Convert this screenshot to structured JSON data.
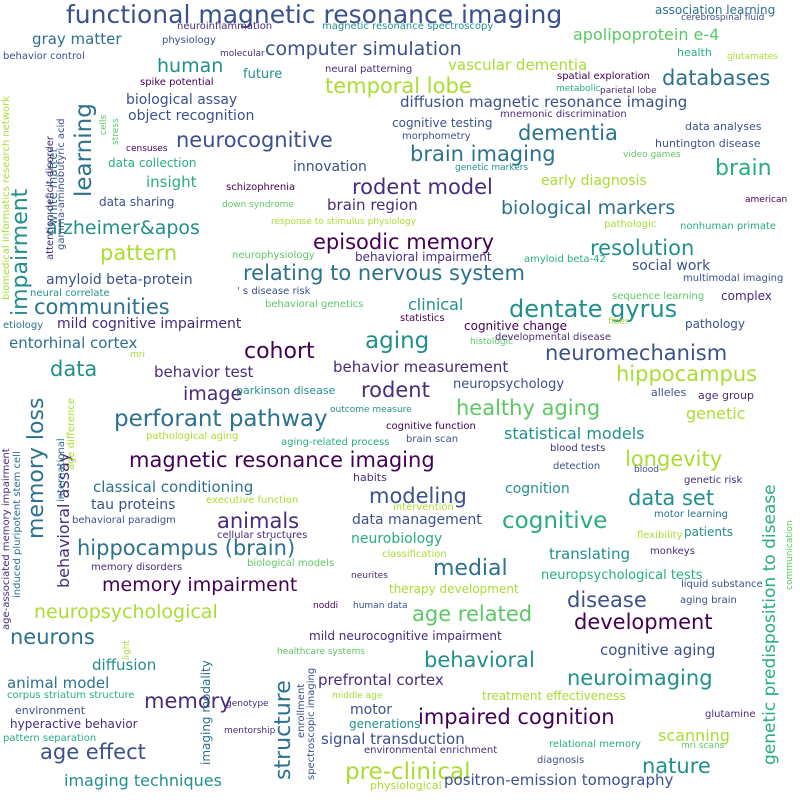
{
  "palette": [
    "#440154",
    "#472c7a",
    "#3b518b",
    "#2c718e",
    "#21908d",
    "#27ad81",
    "#5cc863",
    "#aadc32",
    "#fde725"
  ],
  "words": [
    {
      "t": "functional magnetic resonance imaging",
      "c": "#3b518b"
    },
    {
      "t": "association learning",
      "c": "#2c718e"
    },
    {
      "t": "neuroinflammation",
      "c": "#472c7a"
    },
    {
      "t": "magnetic resonance spectroscopy",
      "c": "#21908d"
    },
    {
      "t": "cerebrospinal fluid",
      "c": "#3b518b"
    },
    {
      "t": "gray matter",
      "c": "#2c718e"
    },
    {
      "t": "physiology",
      "c": "#3b518b"
    },
    {
      "t": "computer simulation",
      "c": "#3b518b"
    },
    {
      "t": "apolipoprotein e-4",
      "c": "#5cc863"
    },
    {
      "t": "human",
      "c": "#21908d"
    },
    {
      "t": "molecular",
      "c": "#472c7a"
    },
    {
      "t": "health",
      "c": "#27ad81"
    },
    {
      "t": "glutamates",
      "c": "#aadc32"
    },
    {
      "t": "behavior control",
      "c": "#3b518b"
    },
    {
      "t": "future",
      "c": "#21908d"
    },
    {
      "t": "neural patterning",
      "c": "#472c7a"
    },
    {
      "t": "vascular dementia",
      "c": "#aadc32"
    },
    {
      "t": "spatial exploration",
      "c": "#440154"
    },
    {
      "t": "databases",
      "c": "#2c718e"
    },
    {
      "t": "spike potential",
      "c": "#440154"
    },
    {
      "t": "temporal lobe",
      "c": "#aadc32"
    },
    {
      "t": "metabolic",
      "c": "#27ad81"
    },
    {
      "t": "parietal lobe",
      "c": "#472c7a"
    },
    {
      "t": "biological assay",
      "c": "#3b518b"
    },
    {
      "t": "diffusion magnetic resonance imaging",
      "c": "#3b518b"
    },
    {
      "t": "object recognition",
      "c": "#3b518b"
    },
    {
      "t": "mnemonic discrimination",
      "c": "#472c7a"
    },
    {
      "t": "cognitive testing",
      "c": "#3b518b"
    },
    {
      "t": "data analyses",
      "c": "#3b518b"
    },
    {
      "t": "neurocognitive",
      "c": "#3b518b"
    },
    {
      "t": "dementia",
      "c": "#2c718e"
    },
    {
      "t": "morphometry",
      "c": "#3b518b"
    },
    {
      "t": "huntington disease",
      "c": "#3b518b"
    },
    {
      "t": "brain imaging",
      "c": "#2c718e"
    },
    {
      "t": "brain",
      "c": "#27ad81"
    },
    {
      "t": "censuses",
      "c": "#440154"
    },
    {
      "t": "data collection",
      "c": "#27ad81"
    },
    {
      "t": "innovation",
      "c": "#3b518b"
    },
    {
      "t": "genetic markers",
      "c": "#21908d"
    },
    {
      "t": "video games",
      "c": "#5cc863"
    },
    {
      "t": "rodent model",
      "c": "#472c7a"
    },
    {
      "t": "early diagnosis",
      "c": "#aadc32"
    },
    {
      "t": "insight",
      "c": "#27ad81"
    },
    {
      "t": "schizophrenia",
      "c": "#440154"
    },
    {
      "t": "biological markers",
      "c": "#2c718e"
    },
    {
      "t": "data sharing",
      "c": "#3b518b"
    },
    {
      "t": "brain region",
      "c": "#472c7a"
    },
    {
      "t": "down syndrome",
      "c": "#5cc863"
    },
    {
      "t": "american",
      "c": "#440154"
    },
    {
      "t": "alzheimer&apos",
      "c": "#21908d"
    },
    {
      "t": "pathologic",
      "c": "#aadc32"
    },
    {
      "t": "nonhuman primate",
      "c": "#27ad81"
    },
    {
      "t": "response to stimulus physiology",
      "c": "#aadc32"
    },
    {
      "t": "episodic memory",
      "c": "#440154"
    },
    {
      "t": "resolution",
      "c": "#21908d"
    },
    {
      "t": "pattern",
      "c": "#aadc32"
    },
    {
      "t": "relating to nervous system",
      "c": "#2c718e"
    },
    {
      "t": "neurophysiology",
      "c": "#5cc863"
    },
    {
      "t": "behavioral impairment",
      "c": "#472c7a"
    },
    {
      "t": "amyloid beta-42",
      "c": "#27ad81"
    },
    {
      "t": "social work",
      "c": "#3b518b"
    },
    {
      "t": "amyloid beta-protein",
      "c": "#3b518b"
    },
    {
      "t": "multimodal imaging",
      "c": "#3b518b"
    },
    {
      "t": "communities",
      "c": "#2c718e"
    },
    {
      "t": "neural correlate",
      "c": "#21908d"
    },
    {
      "t": "' s disease risk",
      "c": "#3b518b"
    },
    {
      "t": "behavioral genetics",
      "c": "#5cc863"
    },
    {
      "t": "sequence learning",
      "c": "#5cc863"
    },
    {
      "t": "complex",
      "c": "#472c7a"
    },
    {
      "t": "dentate gyrus",
      "c": "#21908d"
    },
    {
      "t": "clinical",
      "c": "#21908d"
    },
    {
      "t": "mild cognitive impairment",
      "c": "#472c7a"
    },
    {
      "t": "statistics",
      "c": "#440154"
    },
    {
      "t": "cognitive change",
      "c": "#440154"
    },
    {
      "t": "fiber",
      "c": "#aadc32"
    },
    {
      "t": "pathology",
      "c": "#3b518b"
    },
    {
      "t": "etiology",
      "c": "#2c718e"
    },
    {
      "t": "aging",
      "c": "#21908d"
    },
    {
      "t": "histologic",
      "c": "#5cc863"
    },
    {
      "t": "developmental disease",
      "c": "#472c7a"
    },
    {
      "t": "entorhinal cortex",
      "c": "#2c718e"
    },
    {
      "t": "cohort",
      "c": "#440154"
    },
    {
      "t": "neuromechanism",
      "c": "#3b518b"
    },
    {
      "t": "mri",
      "c": "#aadc32"
    },
    {
      "t": "data",
      "c": "#21908d"
    },
    {
      "t": "behavior measurement",
      "c": "#472c7a"
    },
    {
      "t": "hippocampus",
      "c": "#aadc32"
    },
    {
      "t": "behavior test",
      "c": "#472c7a"
    },
    {
      "t": "neuropsychology",
      "c": "#3b518b"
    },
    {
      "t": "image",
      "c": "#472c7a"
    },
    {
      "t": "parkinson disease",
      "c": "#21908d"
    },
    {
      "t": "rodent",
      "c": "#472c7a"
    },
    {
      "t": "alleles",
      "c": "#3b518b"
    },
    {
      "t": "age group",
      "c": "#472c7a"
    },
    {
      "t": "perforant pathway",
      "c": "#2c718e"
    },
    {
      "t": "outcome measure",
      "c": "#21908d"
    },
    {
      "t": "healthy aging",
      "c": "#5cc863"
    },
    {
      "t": "genetic",
      "c": "#aadc32"
    },
    {
      "t": "cognitive function",
      "c": "#440154"
    },
    {
      "t": "statistical models",
      "c": "#21908d"
    },
    {
      "t": "pathological aging",
      "c": "#aadc32"
    },
    {
      "t": "aging-related process",
      "c": "#27ad81"
    },
    {
      "t": "brain scan",
      "c": "#3b518b"
    },
    {
      "t": "magnetic resonance imaging",
      "c": "#440154"
    },
    {
      "t": "blood tests",
      "c": "#472c7a"
    },
    {
      "t": "longevity",
      "c": "#aadc32"
    },
    {
      "t": "detection",
      "c": "#3b518b"
    },
    {
      "t": "blood",
      "c": "#3b518b"
    },
    {
      "t": "habits",
      "c": "#472c7a"
    },
    {
      "t": "classical conditioning",
      "c": "#2c718e"
    },
    {
      "t": "modeling",
      "c": "#3b518b"
    },
    {
      "t": "cognition",
      "c": "#21908d"
    },
    {
      "t": "genetic risk",
      "c": "#472c7a"
    },
    {
      "t": "tau proteins",
      "c": "#3b518b"
    },
    {
      "t": "data set",
      "c": "#21908d"
    },
    {
      "t": "executive function",
      "c": "#aadc32"
    },
    {
      "t": "intervention",
      "c": "#aadc32"
    },
    {
      "t": "animals",
      "c": "#472c7a"
    },
    {
      "t": "data management",
      "c": "#3b518b"
    },
    {
      "t": "behavioral paradigm",
      "c": "#3b518b"
    },
    {
      "t": "cognitive",
      "c": "#27ad81"
    },
    {
      "t": "motor learning",
      "c": "#2c718e"
    },
    {
      "t": "cellular structures",
      "c": "#472c7a"
    },
    {
      "t": "neurobiology",
      "c": "#27ad81"
    },
    {
      "t": "flexibility",
      "c": "#aadc32"
    },
    {
      "t": "patients",
      "c": "#21908d"
    },
    {
      "t": "hippocampus (brain)",
      "c": "#2c718e"
    },
    {
      "t": "classification",
      "c": "#aadc32"
    },
    {
      "t": "translating",
      "c": "#21908d"
    },
    {
      "t": "monkeys",
      "c": "#472c7a"
    },
    {
      "t": "biological models",
      "c": "#5cc863"
    },
    {
      "t": "medial",
      "c": "#2c718e"
    },
    {
      "t": "memory disorders",
      "c": "#472c7a"
    },
    {
      "t": "neuropsychological tests",
      "c": "#27ad81"
    },
    {
      "t": "memory impairment",
      "c": "#440154"
    },
    {
      "t": "neurites",
      "c": "#472c7a"
    },
    {
      "t": "liquid substance",
      "c": "#3b518b"
    },
    {
      "t": "therapy development",
      "c": "#aadc32"
    },
    {
      "t": "neuropsychological",
      "c": "#aadc32"
    },
    {
      "t": "age related",
      "c": "#5cc863"
    },
    {
      "t": "disease",
      "c": "#3b518b"
    },
    {
      "t": "noddi",
      "c": "#440154"
    },
    {
      "t": "human data",
      "c": "#3b518b"
    },
    {
      "t": "aging brain",
      "c": "#3b518b"
    },
    {
      "t": "development",
      "c": "#440154"
    },
    {
      "t": "neurons",
      "c": "#2c718e"
    },
    {
      "t": "mild neurocognitive impairment",
      "c": "#472c7a"
    },
    {
      "t": "healthcare systems",
      "c": "#5cc863"
    },
    {
      "t": "cognitive aging",
      "c": "#3b518b"
    },
    {
      "t": "diffusion",
      "c": "#21908d"
    },
    {
      "t": "behavioral",
      "c": "#21908d"
    },
    {
      "t": "animal model",
      "c": "#2c718e"
    },
    {
      "t": "prefrontal cortex",
      "c": "#472c7a"
    },
    {
      "t": "neuroimaging",
      "c": "#21908d"
    },
    {
      "t": "corpus striatum structure",
      "c": "#27ad81"
    },
    {
      "t": "memory",
      "c": "#472c7a"
    },
    {
      "t": "treatment effectiveness",
      "c": "#aadc32"
    },
    {
      "t": "middle age",
      "c": "#aadc32"
    },
    {
      "t": "genotype",
      "c": "#472c7a"
    },
    {
      "t": "environment",
      "c": "#3b518b"
    },
    {
      "t": "hyperactive behavior",
      "c": "#472c7a"
    },
    {
      "t": "motor",
      "c": "#3b518b"
    },
    {
      "t": "impaired cognition",
      "c": "#440154"
    },
    {
      "t": "glutamine",
      "c": "#472c7a"
    },
    {
      "t": "pattern separation",
      "c": "#27ad81"
    },
    {
      "t": "generations",
      "c": "#21908d"
    },
    {
      "t": "mentorship",
      "c": "#472c7a"
    },
    {
      "t": "age effect",
      "c": "#3b518b"
    },
    {
      "t": "signal transduction",
      "c": "#3b518b"
    },
    {
      "t": "scanning",
      "c": "#aadc32"
    },
    {
      "t": "relational memory",
      "c": "#27ad81"
    },
    {
      "t": "mri scans",
      "c": "#5cc863"
    },
    {
      "t": "environmental enrichment",
      "c": "#472c7a"
    },
    {
      "t": "nature",
      "c": "#21908d"
    },
    {
      "t": "pre-clinical",
      "c": "#aadc32"
    },
    {
      "t": "diagnosis",
      "c": "#3b518b"
    },
    {
      "t": "imaging techniques",
      "c": "#21908d"
    },
    {
      "t": "physiological",
      "c": "#aadc32"
    },
    {
      "t": "positron-emission tomography",
      "c": "#3b518b"
    },
    {
      "t": "learning",
      "c": "#2c718e"
    },
    {
      "t": "impairment",
      "c": "#21908d"
    },
    {
      "t": "memory loss",
      "c": "#2c718e"
    },
    {
      "t": "behavioral assay",
      "c": "#472c7a"
    },
    {
      "t": "structure",
      "c": "#2c718e"
    },
    {
      "t": "genetic predisposition to disease",
      "c": "#27ad81"
    },
    {
      "t": "white matter",
      "c": "#2c718e"
    },
    {
      "t": "attention deficit disorder",
      "c": "#472c7a"
    },
    {
      "t": "gamma-aminobutyric acid",
      "c": "#3b518b"
    },
    {
      "t": "biomedical informatics research network",
      "c": "#aadc32"
    },
    {
      "t": "age-associated memory impairment",
      "c": "#472c7a"
    },
    {
      "t": "induced pluripotent stem cell",
      "c": "#2c718e"
    },
    {
      "t": "international",
      "c": "#2c718e"
    },
    {
      "t": "age difference",
      "c": "#aadc32"
    },
    {
      "t": "imaging modality",
      "c": "#2c718e"
    },
    {
      "t": "enrollment",
      "c": "#3b518b"
    },
    {
      "t": "spectroscopic imaging",
      "c": "#3b518b"
    },
    {
      "t": "light",
      "c": "#aadc32"
    },
    {
      "t": "cells",
      "c": "#5cc863"
    },
    {
      "t": "stress",
      "c": "#5cc863"
    },
    {
      "t": "communication",
      "c": "#5cc863"
    }
  ]
}
